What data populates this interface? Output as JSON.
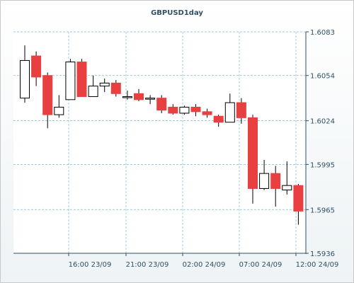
{
  "chart_data": {
    "type": "candlestick",
    "title": "GBPUSD1day",
    "y_ticks": [
      "1.6083",
      "1.6054",
      "1.6024",
      "1.5995",
      "1.5965",
      "1.5936"
    ],
    "x_ticks": [
      "16:00 23/09",
      "21:00 23/09",
      "02:00 24/09",
      "07:00 24/09",
      "12:00 24/09"
    ],
    "ylim": [
      1.5936,
      1.6083
    ],
    "grid": true,
    "colors": {
      "up": "#ffffff",
      "down": "#e84040",
      "wick": "#000000",
      "grid": "#7fb8c8",
      "axis": "#2f4f63"
    },
    "candles": [
      {
        "o": 1.6039,
        "h": 1.6074,
        "l": 1.6036,
        "c": 1.6064
      },
      {
        "o": 1.6067,
        "h": 1.607,
        "l": 1.6047,
        "c": 1.6053
      },
      {
        "o": 1.6054,
        "h": 1.6056,
        "l": 1.6019,
        "c": 1.6028
      },
      {
        "o": 1.6028,
        "h": 1.6041,
        "l": 1.6026,
        "c": 1.6033
      },
      {
        "o": 1.6038,
        "h": 1.6065,
        "l": 1.6038,
        "c": 1.6063
      },
      {
        "o": 1.6063,
        "h": 1.6065,
        "l": 1.604,
        "c": 1.604
      },
      {
        "o": 1.604,
        "h": 1.6054,
        "l": 1.604,
        "c": 1.6047
      },
      {
        "o": 1.6047,
        "h": 1.6052,
        "l": 1.6043,
        "c": 1.6049
      },
      {
        "o": 1.6049,
        "h": 1.6051,
        "l": 1.604,
        "c": 1.6042
      },
      {
        "o": 1.604,
        "h": 1.6044,
        "l": 1.6038,
        "c": 1.604
      },
      {
        "o": 1.6042,
        "h": 1.6045,
        "l": 1.6037,
        "c": 1.6038
      },
      {
        "o": 1.6039,
        "h": 1.6041,
        "l": 1.6035,
        "c": 1.6039
      },
      {
        "o": 1.6039,
        "h": 1.6041,
        "l": 1.6029,
        "c": 1.6031
      },
      {
        "o": 1.6033,
        "h": 1.6035,
        "l": 1.6028,
        "c": 1.6029
      },
      {
        "o": 1.6029,
        "h": 1.6034,
        "l": 1.6028,
        "c": 1.6033
      },
      {
        "o": 1.6033,
        "h": 1.6035,
        "l": 1.6027,
        "c": 1.603
      },
      {
        "o": 1.603,
        "h": 1.6032,
        "l": 1.6026,
        "c": 1.6028
      },
      {
        "o": 1.6027,
        "h": 1.6028,
        "l": 1.602,
        "c": 1.6023
      },
      {
        "o": 1.6023,
        "h": 1.6042,
        "l": 1.6023,
        "c": 1.6036
      },
      {
        "o": 1.6036,
        "h": 1.6039,
        "l": 1.6022,
        "c": 1.6026
      },
      {
        "o": 1.6026,
        "h": 1.6028,
        "l": 1.5969,
        "c": 1.5979
      },
      {
        "o": 1.5979,
        "h": 1.5998,
        "l": 1.5978,
        "c": 1.5989
      },
      {
        "o": 1.5989,
        "h": 1.5994,
        "l": 1.5967,
        "c": 1.5979
      },
      {
        "o": 1.5978,
        "h": 1.5997,
        "l": 1.5975,
        "c": 1.5981
      },
      {
        "o": 1.5981,
        "h": 1.5982,
        "l": 1.5955,
        "c": 1.5964
      }
    ]
  }
}
